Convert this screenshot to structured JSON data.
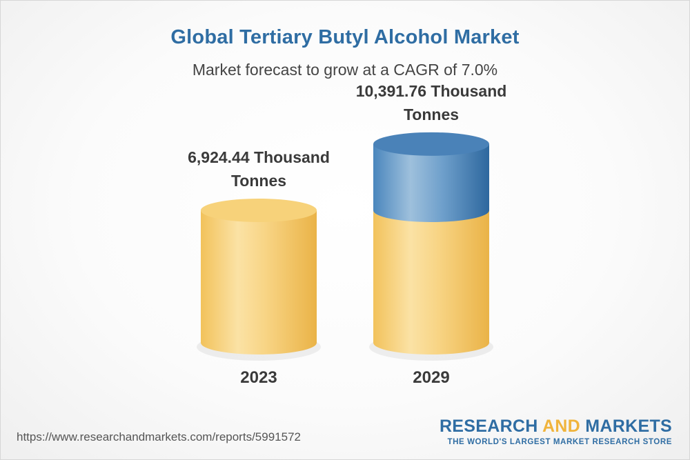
{
  "header": {
    "title": "Global Tertiary Butyl Alcohol Market",
    "subtitle": "Market forecast to grow at a CAGR of 7.0%"
  },
  "chart_data": {
    "type": "bar",
    "title": "Global Tertiary Butyl Alcohol Market",
    "subtitle": "Market forecast to grow at a CAGR of 7.0%",
    "categories": [
      "2023",
      "2029"
    ],
    "values": [
      6924.44,
      10391.76
    ],
    "unit": "Thousand Tonnes",
    "labels": [
      [
        "6,924.44 Thousand",
        "Tonnes"
      ],
      [
        "10,391.76 Thousand",
        "Tonnes"
      ]
    ],
    "colors": {
      "base": "#f2c25b",
      "growth": "#3f7db3"
    },
    "grid": false,
    "xlabel": "",
    "ylabel": ""
  },
  "footer": {
    "url": "https://www.researchandmarkets.com/reports/5991572",
    "brand_primary": "RESEARCH ",
    "brand_accent": "AND",
    "brand_secondary": " MARKETS",
    "tagline": "THE WORLD'S LARGEST MARKET RESEARCH STORE"
  }
}
